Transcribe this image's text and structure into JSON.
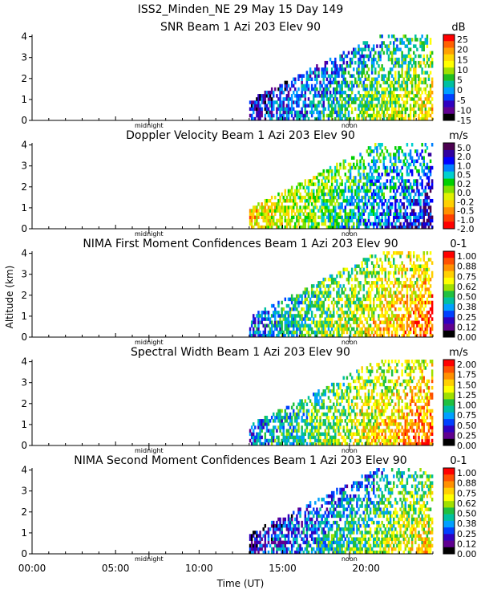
{
  "header": {
    "line1": "ISS2_Minden_NE  29 May 15 Day 149"
  },
  "y_axis_label": "Altitude (km)",
  "x_axis_label": "Time (UT)",
  "x_ticks": [
    "00:00",
    "05:00",
    "10:00",
    "15:00",
    "20:00"
  ],
  "markers": {
    "midnight": "midnight",
    "noon": "noon"
  },
  "colors": {
    "background": "#ffffff",
    "axis": "#000000"
  },
  "chart_data": [
    {
      "type": "heatmap",
      "title": "SNR Beam 1 Azi 203 Elev 90",
      "unit": "dB",
      "x_unit": "hours UT",
      "xlim": [
        0,
        24
      ],
      "ylim": [
        0,
        4.1
      ],
      "y_ticks": [
        "0",
        "1",
        "2",
        "3",
        "4"
      ],
      "data_start_hour": 13.0,
      "colorbar": {
        "labels": [
          "25",
          "20",
          "15",
          "10",
          "5",
          "0",
          "-5",
          "-10",
          "-15"
        ],
        "colors": [
          "#ff0000",
          "#ff6000",
          "#ffa000",
          "#ffd800",
          "#ffff00",
          "#a0e000",
          "#20c020",
          "#00c0a0",
          "#00a0ff",
          "#0040ff",
          "#3000c0",
          "#600090",
          "#000000"
        ]
      }
    },
    {
      "type": "heatmap",
      "title": "Doppler Velocity Beam 1 Azi 203 Elev 90",
      "unit": "m/s",
      "x_unit": "hours UT",
      "xlim": [
        0,
        24
      ],
      "ylim": [
        0,
        4.1
      ],
      "y_ticks": [
        "0",
        "1",
        "2",
        "3",
        "4"
      ],
      "data_start_hour": 13.0,
      "colorbar": {
        "labels": [
          "5.0",
          "2.0",
          "1.0",
          "0.5",
          "0.2",
          "0.0",
          "-0.2",
          "-0.5",
          "-1.0",
          "-2.0"
        ],
        "colors": [
          "#4b0050",
          "#3000a0",
          "#0000ff",
          "#0080ff",
          "#00d0d0",
          "#00d000",
          "#80e000",
          "#e0f000",
          "#ffd000",
          "#ff9000",
          "#ff4000",
          "#ff0000"
        ]
      }
    },
    {
      "type": "heatmap",
      "title": "NIMA First Moment Confidences Beam 1 Azi 203 Elev 90",
      "unit": "0-1",
      "x_unit": "hours UT",
      "xlim": [
        0,
        24
      ],
      "ylim": [
        0,
        4.1
      ],
      "y_ticks": [
        "0",
        "1",
        "2",
        "3",
        "4"
      ],
      "data_start_hour": 13.0,
      "colorbar": {
        "labels": [
          "1.00",
          "0.88",
          "0.75",
          "0.62",
          "0.50",
          "0.38",
          "0.25",
          "0.12",
          "0.00"
        ],
        "colors": [
          "#ff0000",
          "#ff5000",
          "#ff9000",
          "#ffd000",
          "#ffff00",
          "#a0e000",
          "#20c040",
          "#00c0a0",
          "#00a0ff",
          "#0040ff",
          "#3000c0",
          "#600090",
          "#000000"
        ]
      }
    },
    {
      "type": "heatmap",
      "title": "Spectral Width Beam 1 Azi 203 Elev 90",
      "unit": "m/s",
      "x_unit": "hours UT",
      "xlim": [
        0,
        24
      ],
      "ylim": [
        0,
        4.1
      ],
      "y_ticks": [
        "0",
        "1",
        "2",
        "3",
        "4"
      ],
      "data_start_hour": 13.0,
      "colorbar": {
        "labels": [
          "2.00",
          "1.75",
          "1.50",
          "1.25",
          "1.00",
          "0.75",
          "0.50",
          "0.25",
          "0.00"
        ],
        "colors": [
          "#ff0000",
          "#ff5000",
          "#ff9000",
          "#ffd000",
          "#ffff00",
          "#a0e000",
          "#20c040",
          "#00c0a0",
          "#00a0ff",
          "#0040ff",
          "#3000c0",
          "#600090",
          "#000000"
        ]
      }
    },
    {
      "type": "heatmap",
      "title": "NIMA Second Moment Confidences Beam 1 Azi 203 Elev 90",
      "unit": "0-1",
      "x_unit": "hours UT",
      "xlim": [
        0,
        24
      ],
      "ylim": [
        0,
        4.1
      ],
      "y_ticks": [
        "0",
        "1",
        "2",
        "3",
        "4"
      ],
      "data_start_hour": 13.0,
      "colorbar": {
        "labels": [
          "1.00",
          "0.88",
          "0.75",
          "0.62",
          "0.50",
          "0.38",
          "0.25",
          "0.12",
          "0.00"
        ],
        "colors": [
          "#ff0000",
          "#ff5000",
          "#ff9000",
          "#ffd000",
          "#ffff00",
          "#a0e000",
          "#20c040",
          "#00c0a0",
          "#00a0ff",
          "#0040ff",
          "#3000c0",
          "#600090",
          "#000000"
        ]
      }
    }
  ]
}
